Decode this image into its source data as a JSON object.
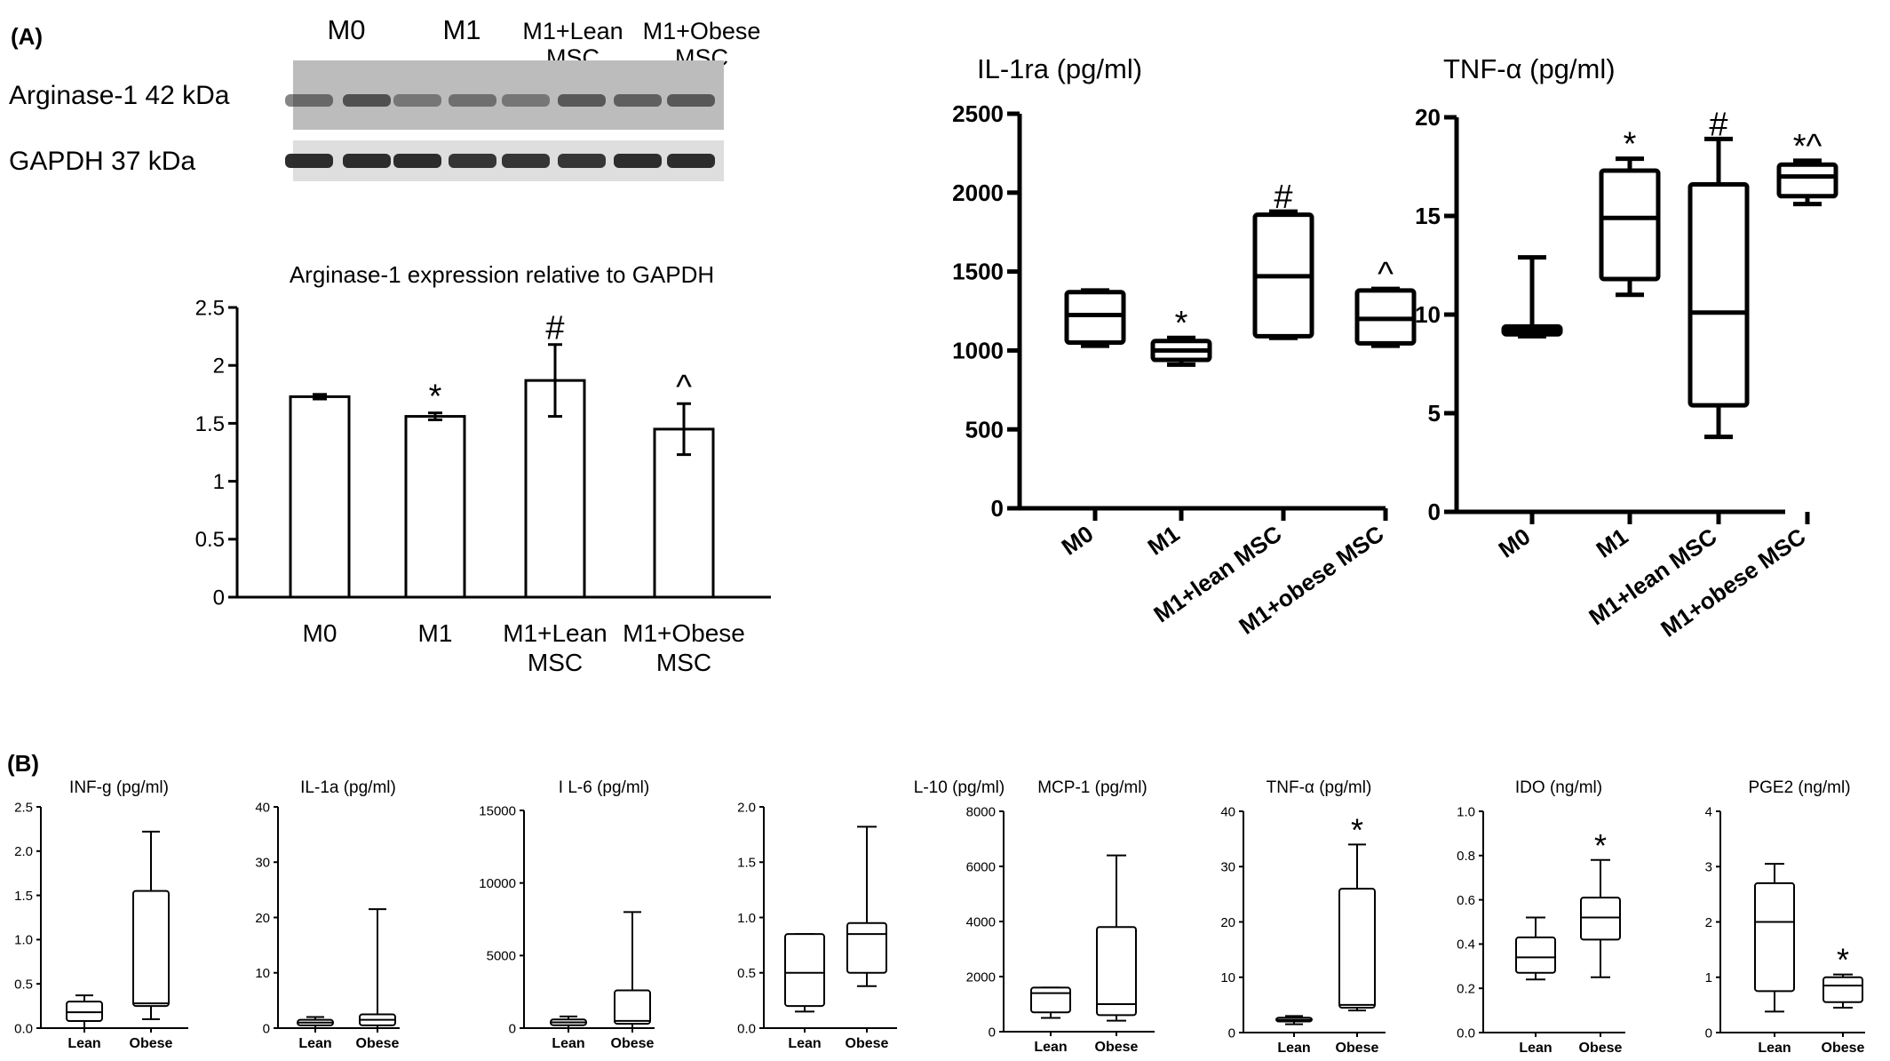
{
  "panel_labels": {
    "a": "(A)",
    "b": "(B)"
  },
  "blot": {
    "lane_headers": [
      {
        "lines": [
          "M0"
        ]
      },
      {
        "lines": [
          "M1"
        ]
      },
      {
        "lines": [
          "M1+Lean",
          "MSC"
        ]
      },
      {
        "lines": [
          "M1+Obese",
          "MSC"
        ]
      }
    ],
    "rows": [
      {
        "label": "Arginase-1 42 kDa",
        "band_intensity": [
          0.55,
          0.7,
          0.45,
          0.5,
          0.45,
          0.65,
          0.6,
          0.65
        ]
      },
      {
        "label": "GAPDH 37 kDa",
        "band_intensity": [
          0.95,
          0.95,
          0.95,
          0.9,
          0.9,
          0.9,
          0.95,
          0.95
        ]
      }
    ]
  },
  "chart_data": [
    {
      "id": "arginase",
      "type": "bar",
      "title": "Arginase-1 expression relative to GAPDH",
      "categories": [
        [
          "M0"
        ],
        [
          "M1"
        ],
        [
          "M1+Lean",
          "MSC"
        ],
        [
          "M1+Obese",
          "MSC"
        ]
      ],
      "values": [
        1.73,
        1.56,
        1.87,
        1.45
      ],
      "errors": [
        0.02,
        0.03,
        0.31,
        0.22
      ],
      "annotations": [
        "",
        "*",
        "#",
        "^"
      ],
      "ylim": [
        0,
        2.5
      ],
      "yticks": [
        "0",
        "0.5",
        "1",
        "1.5",
        "2",
        "2.5"
      ],
      "ytick_values": [
        0,
        0.5,
        1,
        1.5,
        2,
        2.5
      ],
      "grid": false
    },
    {
      "id": "il1ra",
      "type": "box",
      "title": "IL-1ra (pg/ml)",
      "categories": [
        "M0",
        "M1",
        "M1+lean MSC",
        "M1+obese MSC"
      ],
      "boxes": [
        {
          "min": 1030,
          "q1": 1050,
          "median": 1225,
          "q3": 1370,
          "max": 1380
        },
        {
          "min": 910,
          "q1": 940,
          "median": 1000,
          "q3": 1060,
          "max": 1080
        },
        {
          "min": 1080,
          "q1": 1090,
          "median": 1470,
          "q3": 1860,
          "max": 1880
        },
        {
          "min": 1030,
          "q1": 1045,
          "median": 1200,
          "q3": 1380,
          "max": 1390
        }
      ],
      "annotations": [
        "",
        "*",
        "#",
        "^"
      ],
      "ylim": [
        0,
        2500
      ],
      "yticks": [
        "0",
        "500",
        "1000",
        "1500",
        "2000",
        "2500"
      ],
      "ytick_values": [
        0,
        500,
        1000,
        1500,
        2000,
        2500
      ]
    },
    {
      "id": "tnfa_a",
      "type": "box",
      "title": "TNF-α (pg/ml)",
      "categories": [
        "M0",
        "M1",
        "M1+lean MSC",
        "M1+obese MSC"
      ],
      "boxes": [
        {
          "min": 8.9,
          "q1": 9.0,
          "median": 9.2,
          "q3": 9.4,
          "max": 12.9
        },
        {
          "min": 11.0,
          "q1": 11.8,
          "median": 14.9,
          "q3": 17.3,
          "max": 17.9
        },
        {
          "min": 3.8,
          "q1": 5.4,
          "median": 10.1,
          "q3": 16.6,
          "max": 18.9
        },
        {
          "min": 15.6,
          "q1": 16.0,
          "median": 17.0,
          "q3": 17.6,
          "max": 17.8
        }
      ],
      "annotations": [
        "",
        "*",
        "#",
        "*^"
      ],
      "ylim": [
        0,
        20
      ],
      "yticks": [
        "0",
        "5",
        "10",
        "15",
        "20"
      ],
      "ytick_values": [
        0,
        5,
        10,
        15,
        20
      ]
    },
    {
      "id": "b_infg",
      "type": "box",
      "title": "INF-g (pg/ml)",
      "categories": [
        "Lean",
        "Obese"
      ],
      "boxes": [
        {
          "min": 0.0,
          "q1": 0.08,
          "median": 0.18,
          "q3": 0.3,
          "max": 0.37
        },
        {
          "min": 0.1,
          "q1": 0.25,
          "median": 0.28,
          "q3": 1.55,
          "max": 2.22
        }
      ],
      "annotations": [
        "",
        ""
      ],
      "ylim": [
        0,
        2.5
      ],
      "yticks": [
        "0.0",
        "0.5",
        "1.0",
        "1.5",
        "2.0",
        "2.5"
      ],
      "ytick_values": [
        0,
        0.5,
        1.0,
        1.5,
        2.0,
        2.5
      ]
    },
    {
      "id": "b_il1a",
      "type": "box",
      "title": "IL-1a (pg/ml)",
      "categories": [
        "Lean",
        "Obese"
      ],
      "boxes": [
        {
          "min": 0.0,
          "q1": 0.5,
          "median": 1.0,
          "q3": 1.5,
          "max": 2.0
        },
        {
          "min": 0.0,
          "q1": 0.5,
          "median": 1.5,
          "q3": 2.5,
          "max": 21.5
        }
      ],
      "annotations": [
        "",
        ""
      ],
      "ylim": [
        0,
        40
      ],
      "yticks": [
        "0",
        "10",
        "20",
        "30",
        "40"
      ],
      "ytick_values": [
        0,
        10,
        20,
        30,
        40
      ]
    },
    {
      "id": "b_il6",
      "type": "box",
      "title": "I L-6 (pg/ml)",
      "categories": [
        "Lean",
        "Obese"
      ],
      "boxes": [
        {
          "min": 0,
          "q1": 200,
          "median": 400,
          "q3": 600,
          "max": 800
        },
        {
          "min": 0,
          "q1": 300,
          "median": 500,
          "q3": 2600,
          "max": 8000
        }
      ],
      "annotations": [
        "",
        ""
      ],
      "ylim": [
        0,
        15000
      ],
      "yticks": [
        "0",
        "5000",
        "10000",
        "15000"
      ],
      "ytick_values": [
        0,
        5000,
        10000,
        15000
      ]
    },
    {
      "id": "b_il10",
      "type": "box",
      "title": "L-10 (pg/ml)",
      "categories": [
        "Lean",
        "Obese"
      ],
      "boxes": [
        {
          "min": 0.15,
          "q1": 0.2,
          "median": 0.5,
          "q3": 0.85,
          "max": 0.85
        },
        {
          "min": 0.38,
          "q1": 0.5,
          "median": 0.85,
          "q3": 0.95,
          "max": 1.82
        }
      ],
      "annotations": [
        "",
        ""
      ],
      "ylim": [
        0,
        2.0
      ],
      "yticks": [
        "0.0",
        "0.5",
        "1.0",
        "1.5",
        "2.0"
      ],
      "ytick_values": [
        0,
        0.5,
        1.0,
        1.5,
        2.0
      ]
    },
    {
      "id": "b_mcp1",
      "type": "box",
      "title": "MCP-1 (pg/ml)",
      "categories": [
        "Lean",
        "Obese"
      ],
      "boxes": [
        {
          "min": 500,
          "q1": 700,
          "median": 1400,
          "q3": 1600,
          "max": 1600
        },
        {
          "min": 400,
          "q1": 600,
          "median": 1000,
          "q3": 3800,
          "max": 6400
        }
      ],
      "annotations": [
        "",
        ""
      ],
      "ylim": [
        0,
        8000
      ],
      "yticks": [
        "0",
        "2000",
        "4000",
        "6000",
        "8000"
      ],
      "ytick_values": [
        0,
        2000,
        4000,
        6000,
        8000
      ]
    },
    {
      "id": "b_tnfa",
      "type": "box",
      "title": "TNF-α (pg/ml)",
      "categories": [
        "Lean",
        "Obese"
      ],
      "boxes": [
        {
          "min": 1.5,
          "q1": 2.0,
          "median": 2.3,
          "q3": 2.7,
          "max": 3.0
        },
        {
          "min": 4.0,
          "q1": 4.5,
          "median": 5.0,
          "q3": 26.0,
          "max": 34.0
        }
      ],
      "annotations": [
        "",
        "*"
      ],
      "ylim": [
        0,
        40
      ],
      "yticks": [
        "0",
        "10",
        "20",
        "30",
        "40"
      ],
      "ytick_values": [
        0,
        10,
        20,
        30,
        40
      ]
    },
    {
      "id": "b_ido",
      "type": "box",
      "title": "IDO (ng/ml)",
      "categories": [
        "Lean",
        "Obese"
      ],
      "boxes": [
        {
          "min": 0.24,
          "q1": 0.27,
          "median": 0.34,
          "q3": 0.43,
          "max": 0.52
        },
        {
          "min": 0.25,
          "q1": 0.42,
          "median": 0.52,
          "q3": 0.61,
          "max": 0.78
        }
      ],
      "annotations": [
        "",
        "*"
      ],
      "ylim": [
        0,
        1.0
      ],
      "yticks": [
        "0.0",
        "0.2",
        "0.4",
        "0.6",
        "0.8",
        "1.0"
      ],
      "ytick_values": [
        0,
        0.2,
        0.4,
        0.6,
        0.8,
        1.0
      ]
    },
    {
      "id": "b_pge2",
      "type": "box",
      "title": "PGE2 (ng/ml)",
      "categories": [
        "Lean",
        "Obese"
      ],
      "boxes": [
        {
          "min": 0.38,
          "q1": 0.75,
          "median": 2.0,
          "q3": 2.7,
          "max": 3.05
        },
        {
          "min": 0.45,
          "q1": 0.55,
          "median": 0.85,
          "q3": 1.0,
          "max": 1.05
        }
      ],
      "annotations": [
        "",
        "*"
      ],
      "ylim": [
        0,
        4
      ],
      "yticks": [
        "0",
        "1",
        "2",
        "3",
        "4"
      ],
      "ytick_values": [
        0,
        1,
        2,
        3,
        4
      ]
    }
  ]
}
